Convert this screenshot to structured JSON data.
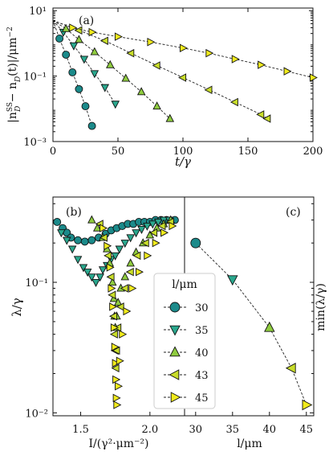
{
  "colors": {
    "c30": "#1b8a8a",
    "c35": "#2aa88e",
    "c40": "#8fcc3f",
    "c43": "#c8dd2a",
    "c45": "#f0ea1c",
    "edge": "#111111"
  },
  "panels": {
    "a": {
      "label": "(a)",
      "xlabel": "t/γ",
      "ylabel": "|n_D^SS − n_D(t)|/μm⁻²",
      "xticks": [
        "0",
        "50",
        "100",
        "150",
        "200"
      ],
      "yticks": [
        "10¹",
        "10⁻¹",
        "10⁻³"
      ]
    },
    "b": {
      "label": "(b)",
      "xlabel": "I/(γ²·μm⁻²)",
      "ylabel": "λ/γ",
      "xticks": [
        "1.5",
        "2.0"
      ],
      "yticks": [
        "10⁻¹",
        "10⁻²"
      ]
    },
    "c": {
      "label": "(c)",
      "xlabel": "l/μm",
      "ylabel": "min(λ/γ)",
      "xticks": [
        "30",
        "35",
        "40",
        "45"
      ]
    }
  },
  "legend": {
    "title": "l/μm",
    "entries": [
      "30",
      "35",
      "40",
      "43",
      "45"
    ]
  },
  "chart_data": [
    {
      "type": "scatter",
      "panel": "a",
      "scale": {
        "y": "log"
      },
      "xlabel": "t/γ",
      "ylabel": "|n_D^SS − n_D(t)|/μm⁻²",
      "xlim": [
        0,
        200
      ],
      "ylim": [
        0.001,
        12
      ],
      "series": [
        {
          "name": "30",
          "marker": "circle",
          "x": [
            0,
            5,
            10,
            15,
            20,
            25,
            30
          ],
          "y": [
            5,
            1.4,
            0.45,
            0.13,
            0.04,
            0.012,
            0.003
          ]
        },
        {
          "name": "35",
          "marker": "triangle-down",
          "x": [
            0,
            8,
            16,
            24,
            32,
            40,
            48
          ],
          "y": [
            5,
            2.2,
            0.85,
            0.33,
            0.12,
            0.045,
            0.014
          ]
        },
        {
          "name": "40",
          "marker": "triangle-up",
          "x": [
            0,
            10,
            20,
            32,
            44,
            56,
            68,
            80,
            90
          ],
          "y": [
            5,
            2.8,
            1.3,
            0.55,
            0.22,
            0.085,
            0.033,
            0.012,
            0.005
          ]
        },
        {
          "name": "43",
          "marker": "triangle-left",
          "x": [
            0,
            20,
            40,
            60,
            80,
            100,
            120,
            140,
            160,
            165
          ],
          "y": [
            5,
            2.5,
            1.2,
            0.5,
            0.21,
            0.09,
            0.038,
            0.016,
            0.0067,
            0.005
          ]
        },
        {
          "name": "45",
          "marker": "triangle-right",
          "x": [
            0,
            15,
            30,
            50,
            75,
            100,
            120,
            140,
            160,
            180,
            200
          ],
          "y": [
            5,
            3,
            2.2,
            1.6,
            1.1,
            0.72,
            0.5,
            0.33,
            0.22,
            0.14,
            0.09
          ]
        }
      ]
    },
    {
      "type": "scatter",
      "panel": "b",
      "scale": {
        "y": "log"
      },
      "xlabel": "I/(γ²·μm⁻²)",
      "ylabel": "λ/γ",
      "xlim": [
        1.3,
        2.25
      ],
      "ylim": [
        0.0095,
        0.45
      ],
      "series": [
        {
          "name": "30",
          "marker": "circle",
          "x": [
            1.33,
            1.37,
            1.4,
            1.43,
            1.48,
            1.53,
            1.58,
            1.63,
            1.68,
            1.72,
            1.76,
            1.8,
            1.84,
            1.88,
            1.92,
            1.96,
            2.0,
            2.04,
            2.08,
            2.12,
            2.18
          ],
          "y": [
            0.29,
            0.26,
            0.24,
            0.22,
            0.21,
            0.205,
            0.21,
            0.22,
            0.235,
            0.25,
            0.26,
            0.27,
            0.28,
            0.28,
            0.29,
            0.29,
            0.29,
            0.3,
            0.3,
            0.3,
            0.3
          ]
        },
        {
          "name": "35",
          "marker": "triangle-down",
          "x": [
            1.36,
            1.4,
            1.44,
            1.48,
            1.52,
            1.55,
            1.58,
            1.61,
            1.64,
            1.66,
            1.69,
            1.72,
            1.75,
            1.78,
            1.82,
            1.86,
            1.9,
            1.94,
            1.98,
            2.02,
            2.06,
            2.1,
            2.14
          ],
          "y": [
            0.24,
            0.21,
            0.18,
            0.15,
            0.13,
            0.12,
            0.11,
            0.1,
            0.11,
            0.125,
            0.135,
            0.15,
            0.16,
            0.18,
            0.2,
            0.22,
            0.24,
            0.255,
            0.27,
            0.28,
            0.29,
            0.3,
            0.3
          ]
        },
        {
          "name": "40",
          "marker": "triangle-up",
          "x": [
            1.58,
            1.62,
            1.66,
            1.69,
            1.71,
            1.73,
            1.74,
            1.745,
            1.75,
            1.76,
            1.77,
            1.79,
            1.82,
            1.86,
            1.9,
            1.95,
            2.0,
            2.05,
            2.1,
            2.15
          ],
          "y": [
            0.3,
            0.26,
            0.22,
            0.18,
            0.14,
            0.1,
            0.075,
            0.055,
            0.045,
            0.055,
            0.07,
            0.09,
            0.11,
            0.14,
            0.17,
            0.2,
            0.23,
            0.26,
            0.28,
            0.3
          ]
        },
        {
          "name": "43",
          "marker": "triangle-left",
          "x": [
            1.64,
            1.67,
            1.7,
            1.72,
            1.73,
            1.74,
            1.745,
            1.75,
            1.755,
            1.76,
            1.77,
            1.79,
            1.82,
            1.86,
            1.91,
            1.97,
            2.03,
            2.09,
            2.15
          ],
          "y": [
            0.28,
            0.22,
            0.16,
            0.11,
            0.08,
            0.055,
            0.04,
            0.03,
            0.022,
            0.03,
            0.045,
            0.065,
            0.09,
            0.12,
            0.16,
            0.2,
            0.24,
            0.27,
            0.29
          ]
        },
        {
          "name": "45",
          "marker": "triangle-right",
          "x": [
            1.66,
            1.69,
            1.71,
            1.72,
            1.73,
            1.74,
            1.745,
            1.75,
            1.753,
            1.756,
            1.76,
            1.77,
            1.78,
            1.8,
            1.83,
            1.87,
            1.92,
            1.98,
            2.04,
            2.1,
            2.16
          ],
          "y": [
            0.26,
            0.19,
            0.13,
            0.09,
            0.065,
            0.045,
            0.032,
            0.024,
            0.018,
            0.013,
            0.0115,
            0.016,
            0.025,
            0.04,
            0.06,
            0.09,
            0.12,
            0.16,
            0.2,
            0.24,
            0.27
          ]
        }
      ]
    },
    {
      "type": "line",
      "panel": "c",
      "scale": {
        "y": "log"
      },
      "xlabel": "l/μm",
      "ylabel": "min(λ/γ)",
      "xlim": [
        28.5,
        46
      ],
      "ylim": [
        0.0095,
        0.45
      ],
      "series": [
        {
          "name": "min",
          "markers": [
            "circle",
            "triangle-down",
            "triangle-up",
            "triangle-left",
            "triangle-right"
          ],
          "x": [
            30,
            35,
            40,
            43,
            45
          ],
          "y": [
            0.2,
            0.105,
            0.045,
            0.022,
            0.0115
          ]
        }
      ]
    }
  ]
}
